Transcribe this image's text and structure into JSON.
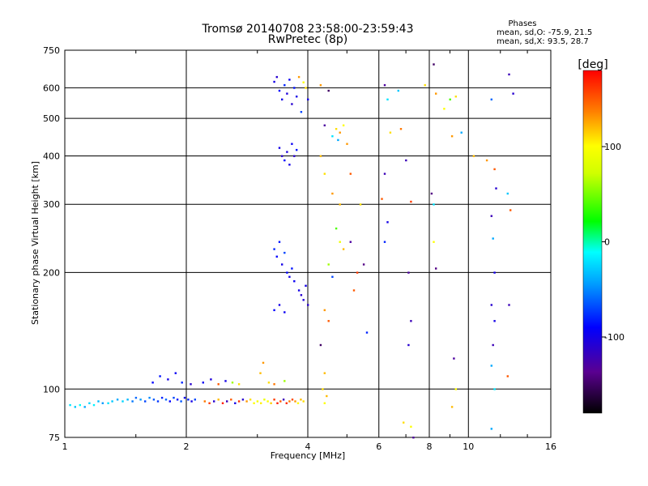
{
  "chart_data": {
    "type": "scatter",
    "title": "Tromsø 20140708 23:58:00-23:59:43",
    "subtitle": "RwPretec (8p)",
    "xlabel": "Frequency [MHz]",
    "ylabel": "Stationary phase Virtual Height [km]",
    "x_scale": "log2",
    "y_scale": "log",
    "xlim": [
      1,
      16
    ],
    "ylim": [
      75,
      750
    ],
    "x_ticks": [
      1,
      2,
      4,
      6,
      8,
      10,
      16
    ],
    "x_tick_labels": [
      "1",
      "2",
      "4",
      "6",
      "8",
      "10",
      "16"
    ],
    "y_ticks": [
      75,
      100,
      200,
      300,
      400,
      500,
      600,
      750
    ],
    "y_tick_labels": [
      "75",
      "100",
      "200",
      "300",
      "400",
      "500",
      "600",
      "750"
    ],
    "grid": true,
    "colorbar": {
      "label": "[deg]",
      "range": [
        -180,
        180
      ],
      "ticks": [
        100,
        0,
        -100
      ],
      "tick_labels": [
        "100",
        "0",
        "-100"
      ],
      "colormap": "rainbow"
    },
    "stats": {
      "heading": "Phases",
      "o_line": "mean, sd,O: -75.9, 21.5",
      "x_line": "mean, sd,X:  93.5, 28.7"
    },
    "series": [
      {
        "points": [
          [
            1.03,
            91,
            -20
          ],
          [
            1.06,
            90,
            -30
          ],
          [
            1.09,
            91,
            -10
          ],
          [
            1.12,
            90,
            -40
          ],
          [
            1.15,
            92,
            -25
          ],
          [
            1.18,
            91,
            -15
          ],
          [
            1.21,
            93,
            -35
          ],
          [
            1.24,
            92,
            -45
          ],
          [
            1.28,
            92,
            -20
          ],
          [
            1.31,
            93,
            -30
          ],
          [
            1.35,
            94,
            -40
          ],
          [
            1.39,
            93,
            -25
          ],
          [
            1.43,
            94,
            -35
          ],
          [
            1.47,
            93,
            -55
          ],
          [
            1.5,
            95,
            -60
          ],
          [
            1.54,
            94,
            -45
          ],
          [
            1.58,
            93,
            -70
          ],
          [
            1.62,
            95,
            -50
          ],
          [
            1.66,
            94,
            -65
          ],
          [
            1.7,
            93,
            -75
          ],
          [
            1.74,
            95,
            -80
          ],
          [
            1.78,
            94,
            -60
          ],
          [
            1.82,
            93,
            -90
          ],
          [
            1.86,
            95,
            -70
          ],
          [
            1.9,
            94,
            -85
          ],
          [
            1.94,
            93,
            -65
          ],
          [
            1.98,
            95,
            -95
          ],
          [
            2.02,
            94,
            -80
          ],
          [
            2.06,
            93,
            -100
          ],
          [
            2.1,
            94,
            -70
          ],
          [
            1.65,
            104,
            -90
          ],
          [
            1.72,
            108,
            -85
          ],
          [
            1.8,
            106,
            -100
          ],
          [
            1.88,
            110,
            -95
          ],
          [
            1.95,
            104,
            -80
          ],
          [
            2.05,
            103,
            -110
          ],
          [
            2.2,
            104,
            -95
          ],
          [
            2.3,
            106,
            -105
          ],
          [
            2.4,
            103,
            150
          ],
          [
            2.5,
            105,
            -100
          ],
          [
            2.6,
            104,
            60
          ],
          [
            2.7,
            103,
            110
          ],
          [
            2.22,
            93,
            140
          ],
          [
            2.28,
            92,
            160
          ],
          [
            2.34,
            93,
            -110
          ],
          [
            2.4,
            94,
            120
          ],
          [
            2.46,
            92,
            170
          ],
          [
            2.52,
            93,
            -120
          ],
          [
            2.58,
            94,
            150
          ],
          [
            2.64,
            92,
            -100
          ],
          [
            2.7,
            93,
            165
          ],
          [
            2.76,
            94,
            -110
          ],
          [
            2.82,
            93,
            130
          ],
          [
            2.88,
            94,
            110
          ],
          [
            2.94,
            92,
            100
          ],
          [
            3.0,
            93,
            95
          ],
          [
            3.06,
            92,
            105
          ],
          [
            3.12,
            94,
            90
          ],
          [
            3.18,
            93,
            100
          ],
          [
            3.24,
            92,
            115
          ],
          [
            3.3,
            94,
            160
          ],
          [
            3.36,
            92,
            170
          ],
          [
            3.42,
            93,
            150
          ],
          [
            3.48,
            94,
            -120
          ],
          [
            3.54,
            92,
            165
          ],
          [
            3.6,
            93,
            140
          ],
          [
            3.66,
            94,
            155
          ],
          [
            3.72,
            93,
            130
          ],
          [
            3.78,
            92,
            100
          ],
          [
            3.84,
            94,
            120
          ],
          [
            3.9,
            93,
            110
          ],
          [
            3.05,
            110,
            120
          ],
          [
            3.1,
            117,
            130
          ],
          [
            3.2,
            104,
            110
          ],
          [
            3.3,
            103,
            140
          ],
          [
            3.5,
            105,
            60
          ],
          [
            3.3,
            622,
            -100
          ],
          [
            3.35,
            640,
            -110
          ],
          [
            3.4,
            590,
            -90
          ],
          [
            3.45,
            560,
            -100
          ],
          [
            3.5,
            610,
            -80
          ],
          [
            3.55,
            580,
            -105
          ],
          [
            3.6,
            630,
            -95
          ],
          [
            3.65,
            545,
            -110
          ],
          [
            3.7,
            600,
            -85
          ],
          [
            3.75,
            570,
            -100
          ],
          [
            3.8,
            640,
            130
          ],
          [
            3.9,
            620,
            100
          ],
          [
            3.85,
            520,
            -70
          ],
          [
            3.95,
            600,
            110
          ],
          [
            4.0,
            560,
            -100
          ],
          [
            3.4,
            420,
            -100
          ],
          [
            3.45,
            400,
            -110
          ],
          [
            3.5,
            390,
            -90
          ],
          [
            3.55,
            410,
            -105
          ],
          [
            3.6,
            380,
            -100
          ],
          [
            3.65,
            430,
            -95
          ],
          [
            3.7,
            400,
            -110
          ],
          [
            3.75,
            415,
            -85
          ],
          [
            3.3,
            230,
            -80
          ],
          [
            3.35,
            220,
            -90
          ],
          [
            3.4,
            240,
            -85
          ],
          [
            3.45,
            210,
            -100
          ],
          [
            3.5,
            225,
            -70
          ],
          [
            3.55,
            200,
            -90
          ],
          [
            3.6,
            195,
            -100
          ],
          [
            3.65,
            205,
            -85
          ],
          [
            3.7,
            190,
            -95
          ],
          [
            3.8,
            180,
            -100
          ],
          [
            3.85,
            175,
            -110
          ],
          [
            3.9,
            170,
            -105
          ],
          [
            3.95,
            185,
            -100
          ],
          [
            4.0,
            165,
            -110
          ],
          [
            3.3,
            160,
            -90
          ],
          [
            3.4,
            165,
            -100
          ],
          [
            3.5,
            158,
            -95
          ],
          [
            4.6,
            450,
            -20
          ],
          [
            4.7,
            470,
            110
          ],
          [
            4.8,
            460,
            130
          ],
          [
            4.9,
            480,
            100
          ],
          [
            4.75,
            440,
            -40
          ],
          [
            4.3,
            610,
            130
          ],
          [
            4.5,
            590,
            -150
          ],
          [
            4.4,
            480,
            -130
          ],
          [
            4.3,
            400,
            120
          ],
          [
            4.4,
            360,
            110
          ],
          [
            4.6,
            320,
            130
          ],
          [
            4.8,
            300,
            120
          ],
          [
            4.7,
            260,
            40
          ],
          [
            4.8,
            240,
            90
          ],
          [
            4.9,
            230,
            120
          ],
          [
            4.5,
            210,
            60
          ],
          [
            4.6,
            195,
            -70
          ],
          [
            4.4,
            160,
            130
          ],
          [
            4.5,
            150,
            150
          ],
          [
            4.3,
            130,
            -150
          ],
          [
            4.4,
            110,
            120
          ],
          [
            4.35,
            100,
            110
          ],
          [
            4.4,
            92,
            100
          ],
          [
            4.45,
            96,
            120
          ],
          [
            5.1,
            240,
            -130
          ],
          [
            5.3,
            200,
            160
          ],
          [
            5.5,
            210,
            -140
          ],
          [
            5.2,
            180,
            150
          ],
          [
            5.6,
            140,
            -80
          ],
          [
            5.4,
            300,
            110
          ],
          [
            5.0,
            430,
            130
          ],
          [
            5.1,
            360,
            150
          ],
          [
            6.2,
            610,
            -130
          ],
          [
            6.3,
            560,
            -20
          ],
          [
            6.4,
            460,
            110
          ],
          [
            6.2,
            360,
            -120
          ],
          [
            6.1,
            310,
            150
          ],
          [
            6.3,
            270,
            -100
          ],
          [
            6.2,
            240,
            -80
          ],
          [
            6.7,
            590,
            -30
          ],
          [
            6.8,
            470,
            140
          ],
          [
            7.0,
            390,
            -120
          ],
          [
            7.2,
            305,
            160
          ],
          [
            7.1,
            200,
            -130
          ],
          [
            7.2,
            150,
            -120
          ],
          [
            7.1,
            130,
            -110
          ],
          [
            7.2,
            80,
            100
          ],
          [
            6.9,
            82,
            110
          ],
          [
            7.3,
            75,
            -130
          ],
          [
            7.8,
            610,
            110
          ],
          [
            8.2,
            690,
            -150
          ],
          [
            8.3,
            580,
            130
          ],
          [
            8.1,
            320,
            -140
          ],
          [
            8.2,
            240,
            100
          ],
          [
            8.3,
            205,
            -140
          ],
          [
            8.2,
            300,
            -20
          ],
          [
            8.7,
            530,
            100
          ],
          [
            9.0,
            560,
            40
          ],
          [
            9.3,
            570,
            110
          ],
          [
            9.1,
            450,
            130
          ],
          [
            9.2,
            120,
            -130
          ],
          [
            9.3,
            100,
            100
          ],
          [
            9.1,
            90,
            120
          ],
          [
            9.6,
            460,
            -40
          ],
          [
            10.3,
            400,
            120
          ],
          [
            11.1,
            390,
            130
          ],
          [
            11.4,
            560,
            -60
          ],
          [
            11.6,
            370,
            150
          ],
          [
            11.7,
            330,
            -110
          ],
          [
            11.4,
            280,
            -120
          ],
          [
            11.5,
            245,
            -40
          ],
          [
            11.6,
            200,
            -100
          ],
          [
            11.4,
            165,
            -110
          ],
          [
            11.6,
            150,
            -100
          ],
          [
            11.5,
            130,
            -120
          ],
          [
            11.4,
            115,
            -40
          ],
          [
            11.6,
            100,
            -20
          ],
          [
            11.4,
            79,
            -40
          ],
          [
            12.6,
            650,
            -120
          ],
          [
            12.9,
            580,
            -110
          ],
          [
            12.5,
            320,
            -30
          ],
          [
            12.7,
            290,
            150
          ],
          [
            12.6,
            165,
            -120
          ],
          [
            12.5,
            108,
            150
          ]
        ]
      }
    ]
  }
}
